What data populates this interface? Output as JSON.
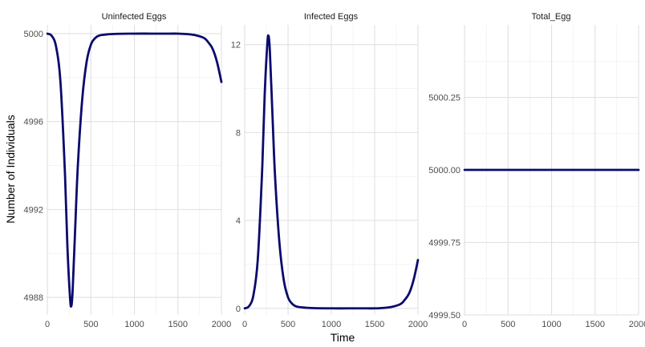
{
  "chart_data": {
    "type": "line",
    "xlabel": "Time",
    "ylabel": "Number of Individuals",
    "line_color": "#0a0a6e",
    "grid": true,
    "facets": [
      {
        "title": "Uninfected Eggs",
        "xlim": [
          -10,
          2000
        ],
        "ylim": [
          4987.2,
          5000.4
        ],
        "xticks": [
          0,
          500,
          1000,
          1500,
          2000
        ],
        "yticks": [
          4988,
          4992,
          4996,
          5000
        ],
        "ytick_labels": [
          "4988",
          "4992",
          "4996",
          "5000"
        ],
        "series": [
          {
            "x": [
              0,
              50,
              100,
              150,
              200,
              230,
              260,
              275,
              290,
              320,
              350,
              400,
              450,
              500,
              550,
              600,
              700,
              800,
              1000,
              1200,
              1400,
              1500,
              1600,
              1700,
              1800,
              1850,
              1900,
              1950,
              2000
            ],
            "y": [
              5000,
              4999.9,
              4999.4,
              4997.8,
              4993.8,
              4990.3,
              4988.0,
              4987.6,
              4988.3,
              4991.2,
              4994.0,
              4997.0,
              4998.7,
              4999.5,
              4999.8,
              4999.92,
              4999.97,
              4999.99,
              5000,
              5000,
              5000,
              5000,
              4999.98,
              4999.93,
              4999.8,
              4999.6,
              4999.3,
              4998.7,
              4997.8
            ]
          }
        ]
      },
      {
        "title": "Infected Eggs",
        "xlim": [
          -10,
          2000
        ],
        "ylim": [
          -0.3,
          12.9
        ],
        "xticks": [
          0,
          500,
          1000,
          1500,
          2000
        ],
        "yticks": [
          0,
          4,
          8,
          12
        ],
        "ytick_labels": [
          "0",
          "4",
          "8",
          "12"
        ],
        "series": [
          {
            "x": [
              0,
              50,
              100,
              150,
              200,
              230,
              260,
              275,
              290,
              320,
              350,
              400,
              450,
              500,
              550,
              600,
              700,
              800,
              1000,
              1200,
              1400,
              1500,
              1600,
              1700,
              1800,
              1850,
              1900,
              1950,
              2000
            ],
            "y": [
              0,
              0.1,
              0.6,
              2.2,
              6.2,
              9.7,
              12.0,
              12.4,
              11.7,
              8.8,
              6.0,
              3.0,
              1.3,
              0.5,
              0.2,
              0.08,
              0.03,
              0.01,
              0,
              0,
              0,
              0,
              0.02,
              0.07,
              0.2,
              0.4,
              0.7,
              1.3,
              2.2
            ]
          }
        ]
      },
      {
        "title": "Total_Egg",
        "xlim": [
          -10,
          2000
        ],
        "ylim": [
          4999.5,
          5000.5
        ],
        "xticks": [
          0,
          500,
          1000,
          1500,
          2000
        ],
        "yticks": [
          4999.5,
          4999.75,
          5000.0,
          5000.25
        ],
        "ytick_labels": [
          "4999.50",
          "4999.75",
          "5000.00",
          "5000.25"
        ],
        "series": [
          {
            "x": [
              0,
              2000
            ],
            "y": [
              5000,
              5000
            ]
          }
        ]
      }
    ]
  }
}
